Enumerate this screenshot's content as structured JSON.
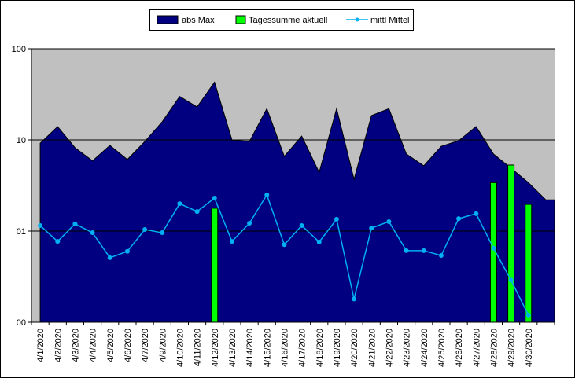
{
  "chart_data": {
    "type": "combo",
    "categories": [
      "4/1/2020",
      "4/2/2020",
      "4/3/2020",
      "4/4/2020",
      "4/5/2020",
      "4/6/2020",
      "4/7/2020",
      "4/9/2020",
      "4/10/2020",
      "4/11/2020",
      "4/12/2020",
      "4/13/2020",
      "4/14/2020",
      "4/15/2020",
      "4/16/2020",
      "4/17/2020",
      "4/18/2020",
      "4/19/2020",
      "4/20/2020",
      "4/21/2020",
      "4/22/2020",
      "4/23/2020",
      "4/24/2020",
      "4/25/2020",
      "4/26/2020",
      "4/27/2020",
      "4/28/2020",
      "4/29/2020",
      "4/30/2020",
      null
    ],
    "series": [
      {
        "name": "abs Max",
        "kind": "area",
        "color": "#000080",
        "values": [
          9.2,
          14,
          8.2,
          5.9,
          8.7,
          6.1,
          9.6,
          15.8,
          30,
          23,
          43,
          10,
          9.6,
          22,
          6.6,
          11,
          4.4,
          22,
          3.7,
          18.5,
          22,
          7,
          5.2,
          8.5,
          9.8,
          14,
          7,
          4.9,
          3.4,
          2.2
        ]
      },
      {
        "name": "Tagessumme aktuell",
        "kind": "bar",
        "color": "#00ff00",
        "values": [
          null,
          null,
          null,
          null,
          null,
          null,
          null,
          null,
          null,
          null,
          1.78,
          null,
          null,
          null,
          null,
          null,
          null,
          null,
          null,
          null,
          null,
          null,
          null,
          null,
          null,
          null,
          3.4,
          5.3,
          1.96,
          null
        ]
      },
      {
        "name": "mittl Mittel",
        "kind": "line",
        "color": "#00b0f0",
        "values": [
          1.15,
          0.77,
          1.2,
          0.96,
          0.51,
          0.6,
          1.04,
          0.96,
          2.0,
          1.64,
          2.3,
          0.77,
          1.22,
          2.5,
          0.71,
          1.15,
          0.76,
          1.35,
          0.18,
          1.08,
          1.27,
          0.61,
          0.61,
          0.54,
          1.37,
          1.55,
          0.65,
          0.29,
          0.12,
          null
        ]
      }
    ],
    "ylim": [
      0.1,
      100
    ],
    "log_y": true,
    "yticks": [
      {
        "value": 0.1,
        "label": "00"
      },
      {
        "value": 1,
        "label": "01"
      },
      10,
      100
    ],
    "grid": true,
    "legend": "top"
  }
}
